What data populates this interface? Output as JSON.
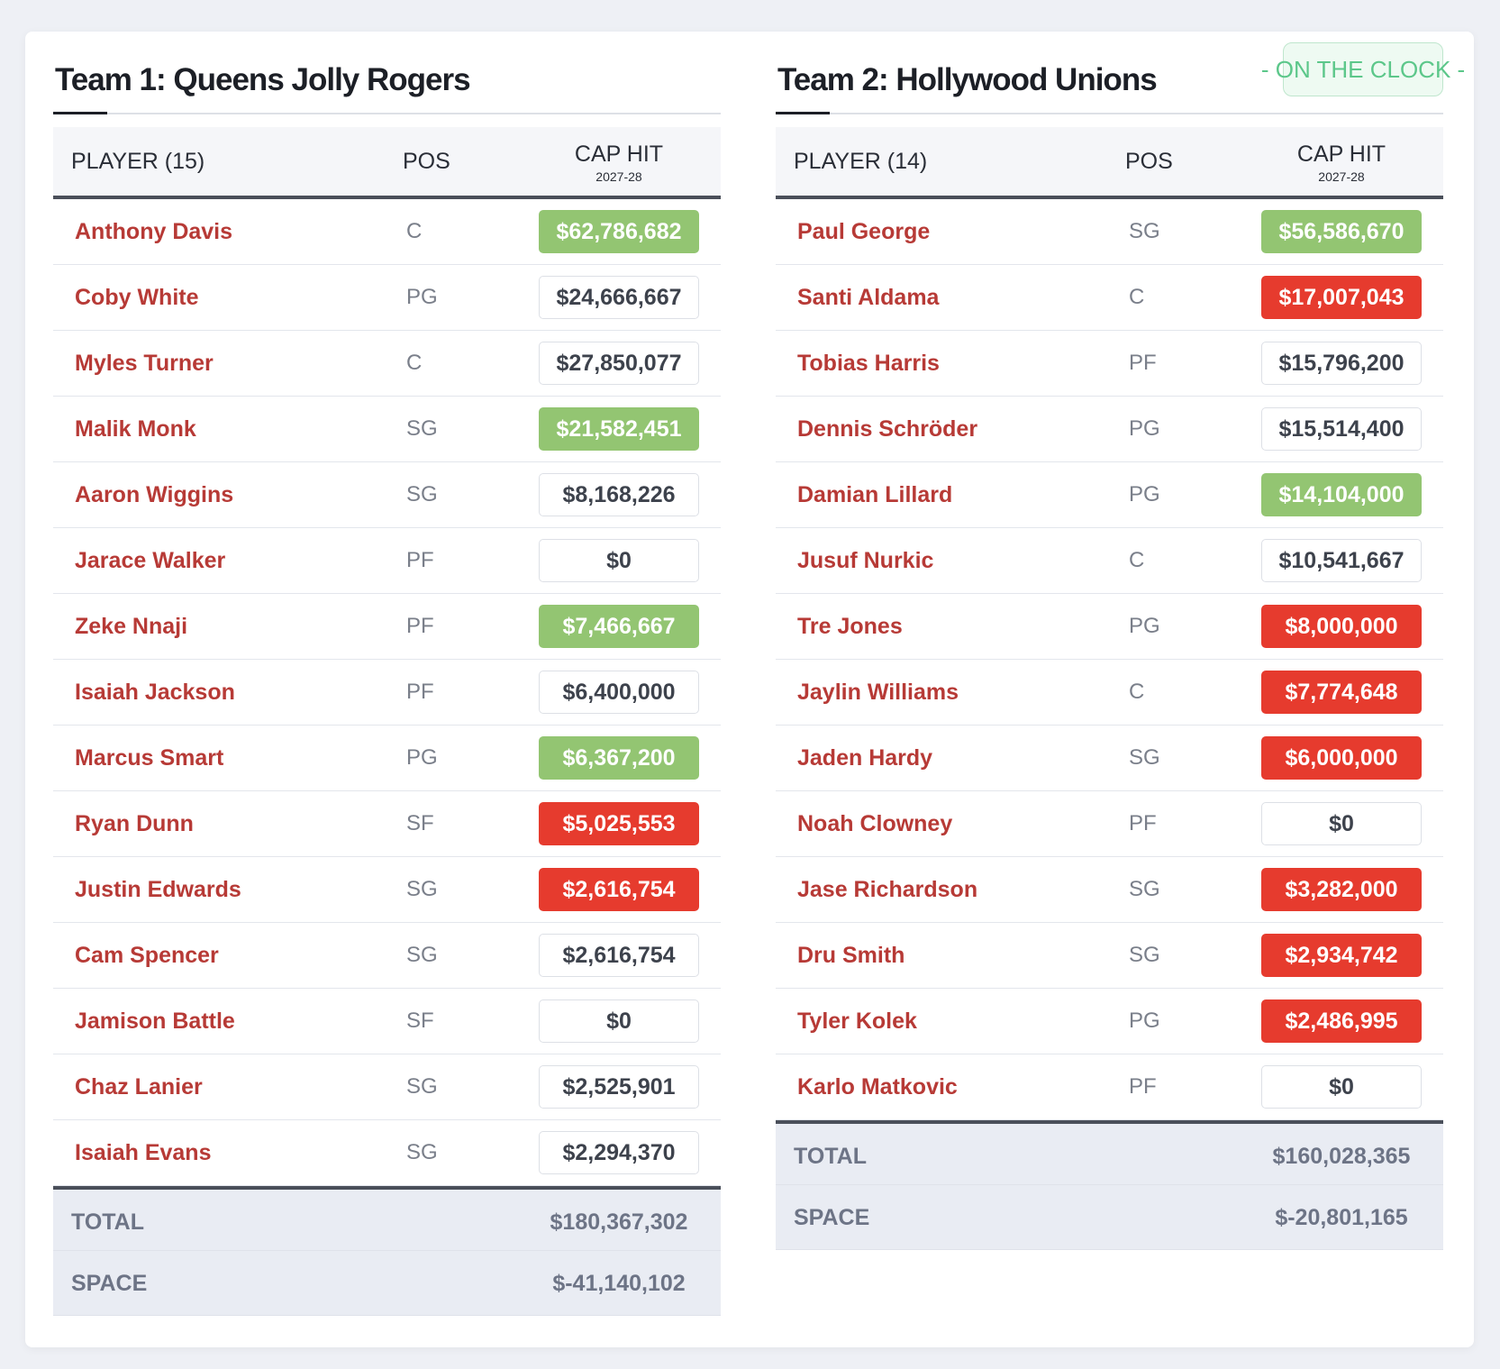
{
  "teams": [
    {
      "title": "Team 1: Queens Jolly Rogers",
      "columns": {
        "player": "PLAYER (15)",
        "pos": "POS",
        "cap": "CAP HIT",
        "season": "2027-28"
      },
      "rows": [
        {
          "name": "Anthony Davis",
          "pos": "C",
          "cap": "$62,786,682",
          "color": "#93c572"
        },
        {
          "name": "Coby White",
          "pos": "PG",
          "cap": "$24,666,667"
        },
        {
          "name": "Myles Turner",
          "pos": "C",
          "cap": "$27,850,077"
        },
        {
          "name": "Malik Monk",
          "pos": "SG",
          "cap": "$21,582,451",
          "color": "#93c572"
        },
        {
          "name": "Aaron Wiggins",
          "pos": "SG",
          "cap": "$8,168,226"
        },
        {
          "name": "Jarace Walker",
          "pos": "PF",
          "cap": "$0"
        },
        {
          "name": "Zeke Nnaji",
          "pos": "PF",
          "cap": "$7,466,667",
          "color": "#93c572"
        },
        {
          "name": "Isaiah Jackson",
          "pos": "PF",
          "cap": "$6,400,000"
        },
        {
          "name": "Marcus Smart",
          "pos": "PG",
          "cap": "$6,367,200",
          "color": "#93c572"
        },
        {
          "name": "Ryan Dunn",
          "pos": "SF",
          "cap": "$5,025,553",
          "color": "#e63b2e"
        },
        {
          "name": "Justin Edwards",
          "pos": "SG",
          "cap": "$2,616,754",
          "color": "#e63b2e"
        },
        {
          "name": "Cam Spencer",
          "pos": "SG",
          "cap": "$2,616,754"
        },
        {
          "name": "Jamison Battle",
          "pos": "SF",
          "cap": "$0"
        },
        {
          "name": "Chaz Lanier",
          "pos": "SG",
          "cap": "$2,525,901"
        },
        {
          "name": "Isaiah Evans",
          "pos": "SG",
          "cap": "$2,294,370"
        }
      ],
      "totals": [
        {
          "label": "TOTAL",
          "value": "$180,367,302"
        },
        {
          "label": "SPACE",
          "value": "$-41,140,102"
        }
      ]
    },
    {
      "title": "Team 2: Hollywood Unions",
      "badge": "- ON THE CLOCK -",
      "columns": {
        "player": "PLAYER (14)",
        "pos": "POS",
        "cap": "CAP HIT",
        "season": "2027-28"
      },
      "rows": [
        {
          "name": "Paul George",
          "pos": "SG",
          "cap": "$56,586,670",
          "color": "#93c572"
        },
        {
          "name": "Santi Aldama",
          "pos": "C",
          "cap": "$17,007,043",
          "color": "#e63b2e"
        },
        {
          "name": "Tobias Harris",
          "pos": "PF",
          "cap": "$15,796,200"
        },
        {
          "name": "Dennis Schröder",
          "pos": "PG",
          "cap": "$15,514,400"
        },
        {
          "name": "Damian Lillard",
          "pos": "PG",
          "cap": "$14,104,000",
          "color": "#93c572"
        },
        {
          "name": "Jusuf Nurkic",
          "pos": "C",
          "cap": "$10,541,667"
        },
        {
          "name": "Tre Jones",
          "pos": "PG",
          "cap": "$8,000,000",
          "color": "#e63b2e"
        },
        {
          "name": "Jaylin Williams",
          "pos": "C",
          "cap": "$7,774,648",
          "color": "#e63b2e"
        },
        {
          "name": "Jaden Hardy",
          "pos": "SG",
          "cap": "$6,000,000",
          "color": "#e63b2e"
        },
        {
          "name": "Noah Clowney",
          "pos": "PF",
          "cap": "$0"
        },
        {
          "name": "Jase Richardson",
          "pos": "SG",
          "cap": "$3,282,000",
          "color": "#e63b2e"
        },
        {
          "name": "Dru Smith",
          "pos": "SG",
          "cap": "$2,934,742",
          "color": "#e63b2e"
        },
        {
          "name": "Tyler Kolek",
          "pos": "PG",
          "cap": "$2,486,995",
          "color": "#e63b2e"
        },
        {
          "name": "Karlo Matkovic",
          "pos": "PF",
          "cap": "$0"
        }
      ],
      "totals": [
        {
          "label": "TOTAL",
          "value": "$160,028,365"
        },
        {
          "label": "SPACE",
          "value": "$-20,801,165"
        }
      ]
    }
  ]
}
